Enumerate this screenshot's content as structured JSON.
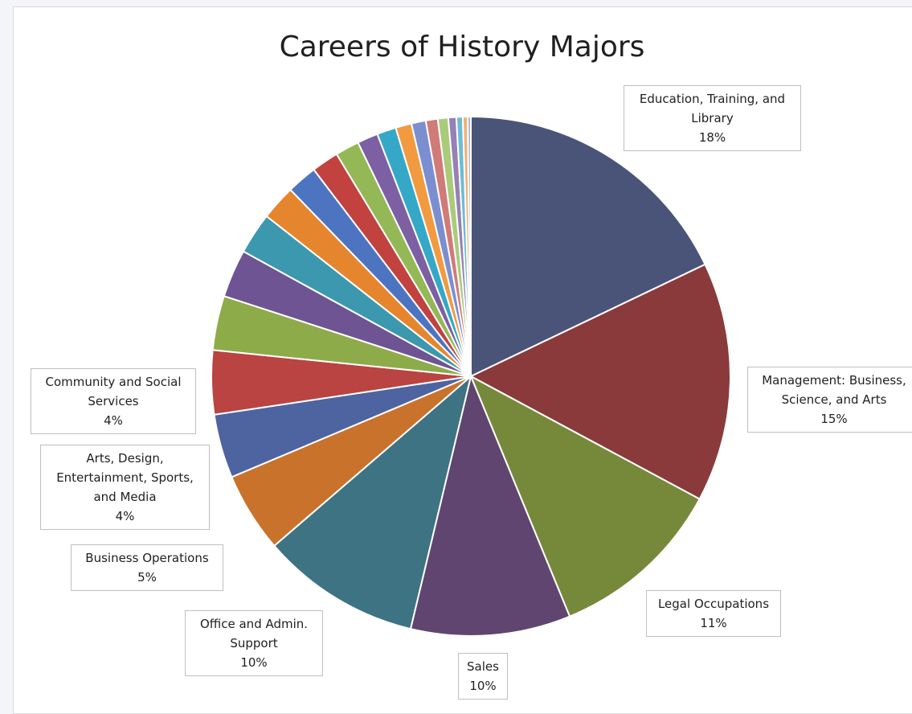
{
  "chart_data": {
    "type": "pie",
    "title": "Careers of History Majors",
    "slices": [
      {
        "label_lines": [
          "Education, Training, and",
          "Library"
        ],
        "value_label": "18%",
        "value": 18,
        "color": "#4a5478"
      },
      {
        "label_lines": [
          "Management: Business,",
          "Science, and Arts"
        ],
        "value_label": "15%",
        "value": 15,
        "color": "#8a3a3a"
      },
      {
        "label_lines": [
          "Legal Occupations"
        ],
        "value_label": "11%",
        "value": 11,
        "color": "#76893b"
      },
      {
        "label_lines": [
          "Sales"
        ],
        "value_label": "10%",
        "value": 10,
        "color": "#604570"
      },
      {
        "label_lines": [
          "Office and Admin.",
          "Support"
        ],
        "value_label": "10%",
        "value": 10,
        "color": "#3d7382"
      },
      {
        "label_lines": [
          "Business Operations"
        ],
        "value_label": "5%",
        "value": 5,
        "color": "#c9722c"
      },
      {
        "label_lines": [
          "Arts, Design,",
          "Entertainment, Sports,",
          "and Media"
        ],
        "value_label": "4%",
        "value": 4,
        "color": "#4e64a0"
      },
      {
        "label_lines": [
          "Community and Social",
          "Services"
        ],
        "value_label": "4%",
        "value": 4,
        "color": "#b94442"
      },
      {
        "label_lines": [],
        "value_label": "",
        "value": 3.4,
        "color": "#8eab4a"
      },
      {
        "label_lines": [],
        "value_label": "",
        "value": 3.0,
        "color": "#6e5492"
      },
      {
        "label_lines": [],
        "value_label": "",
        "value": 2.6,
        "color": "#3b98af"
      },
      {
        "label_lines": [],
        "value_label": "",
        "value": 2.2,
        "color": "#e5862e"
      },
      {
        "label_lines": [],
        "value_label": "",
        "value": 1.9,
        "color": "#4d74c1"
      },
      {
        "label_lines": [],
        "value_label": "",
        "value": 1.7,
        "color": "#c1423f"
      },
      {
        "label_lines": [],
        "value_label": "",
        "value": 1.5,
        "color": "#94b856"
      },
      {
        "label_lines": [],
        "value_label": "",
        "value": 1.3,
        "color": "#7d5fa4"
      },
      {
        "label_lines": [],
        "value_label": "",
        "value": 1.2,
        "color": "#35a8c8"
      },
      {
        "label_lines": [],
        "value_label": "",
        "value": 1.0,
        "color": "#f29a40"
      },
      {
        "label_lines": [],
        "value_label": "",
        "value": 0.9,
        "color": "#7b8fd0"
      },
      {
        "label_lines": [],
        "value_label": "",
        "value": 0.75,
        "color": "#d07b79"
      },
      {
        "label_lines": [],
        "value_label": "",
        "value": 0.65,
        "color": "#aacb7a"
      },
      {
        "label_lines": [],
        "value_label": "",
        "value": 0.5,
        "color": "#9680b6"
      },
      {
        "label_lines": [],
        "value_label": "",
        "value": 0.4,
        "color": "#6cbcd6"
      },
      {
        "label_lines": [],
        "value_label": "",
        "value": 0.3,
        "color": "#f2b073"
      },
      {
        "label_lines": [],
        "value_label": "",
        "value": 0.2,
        "color": "#a7b6e0"
      }
    ]
  }
}
